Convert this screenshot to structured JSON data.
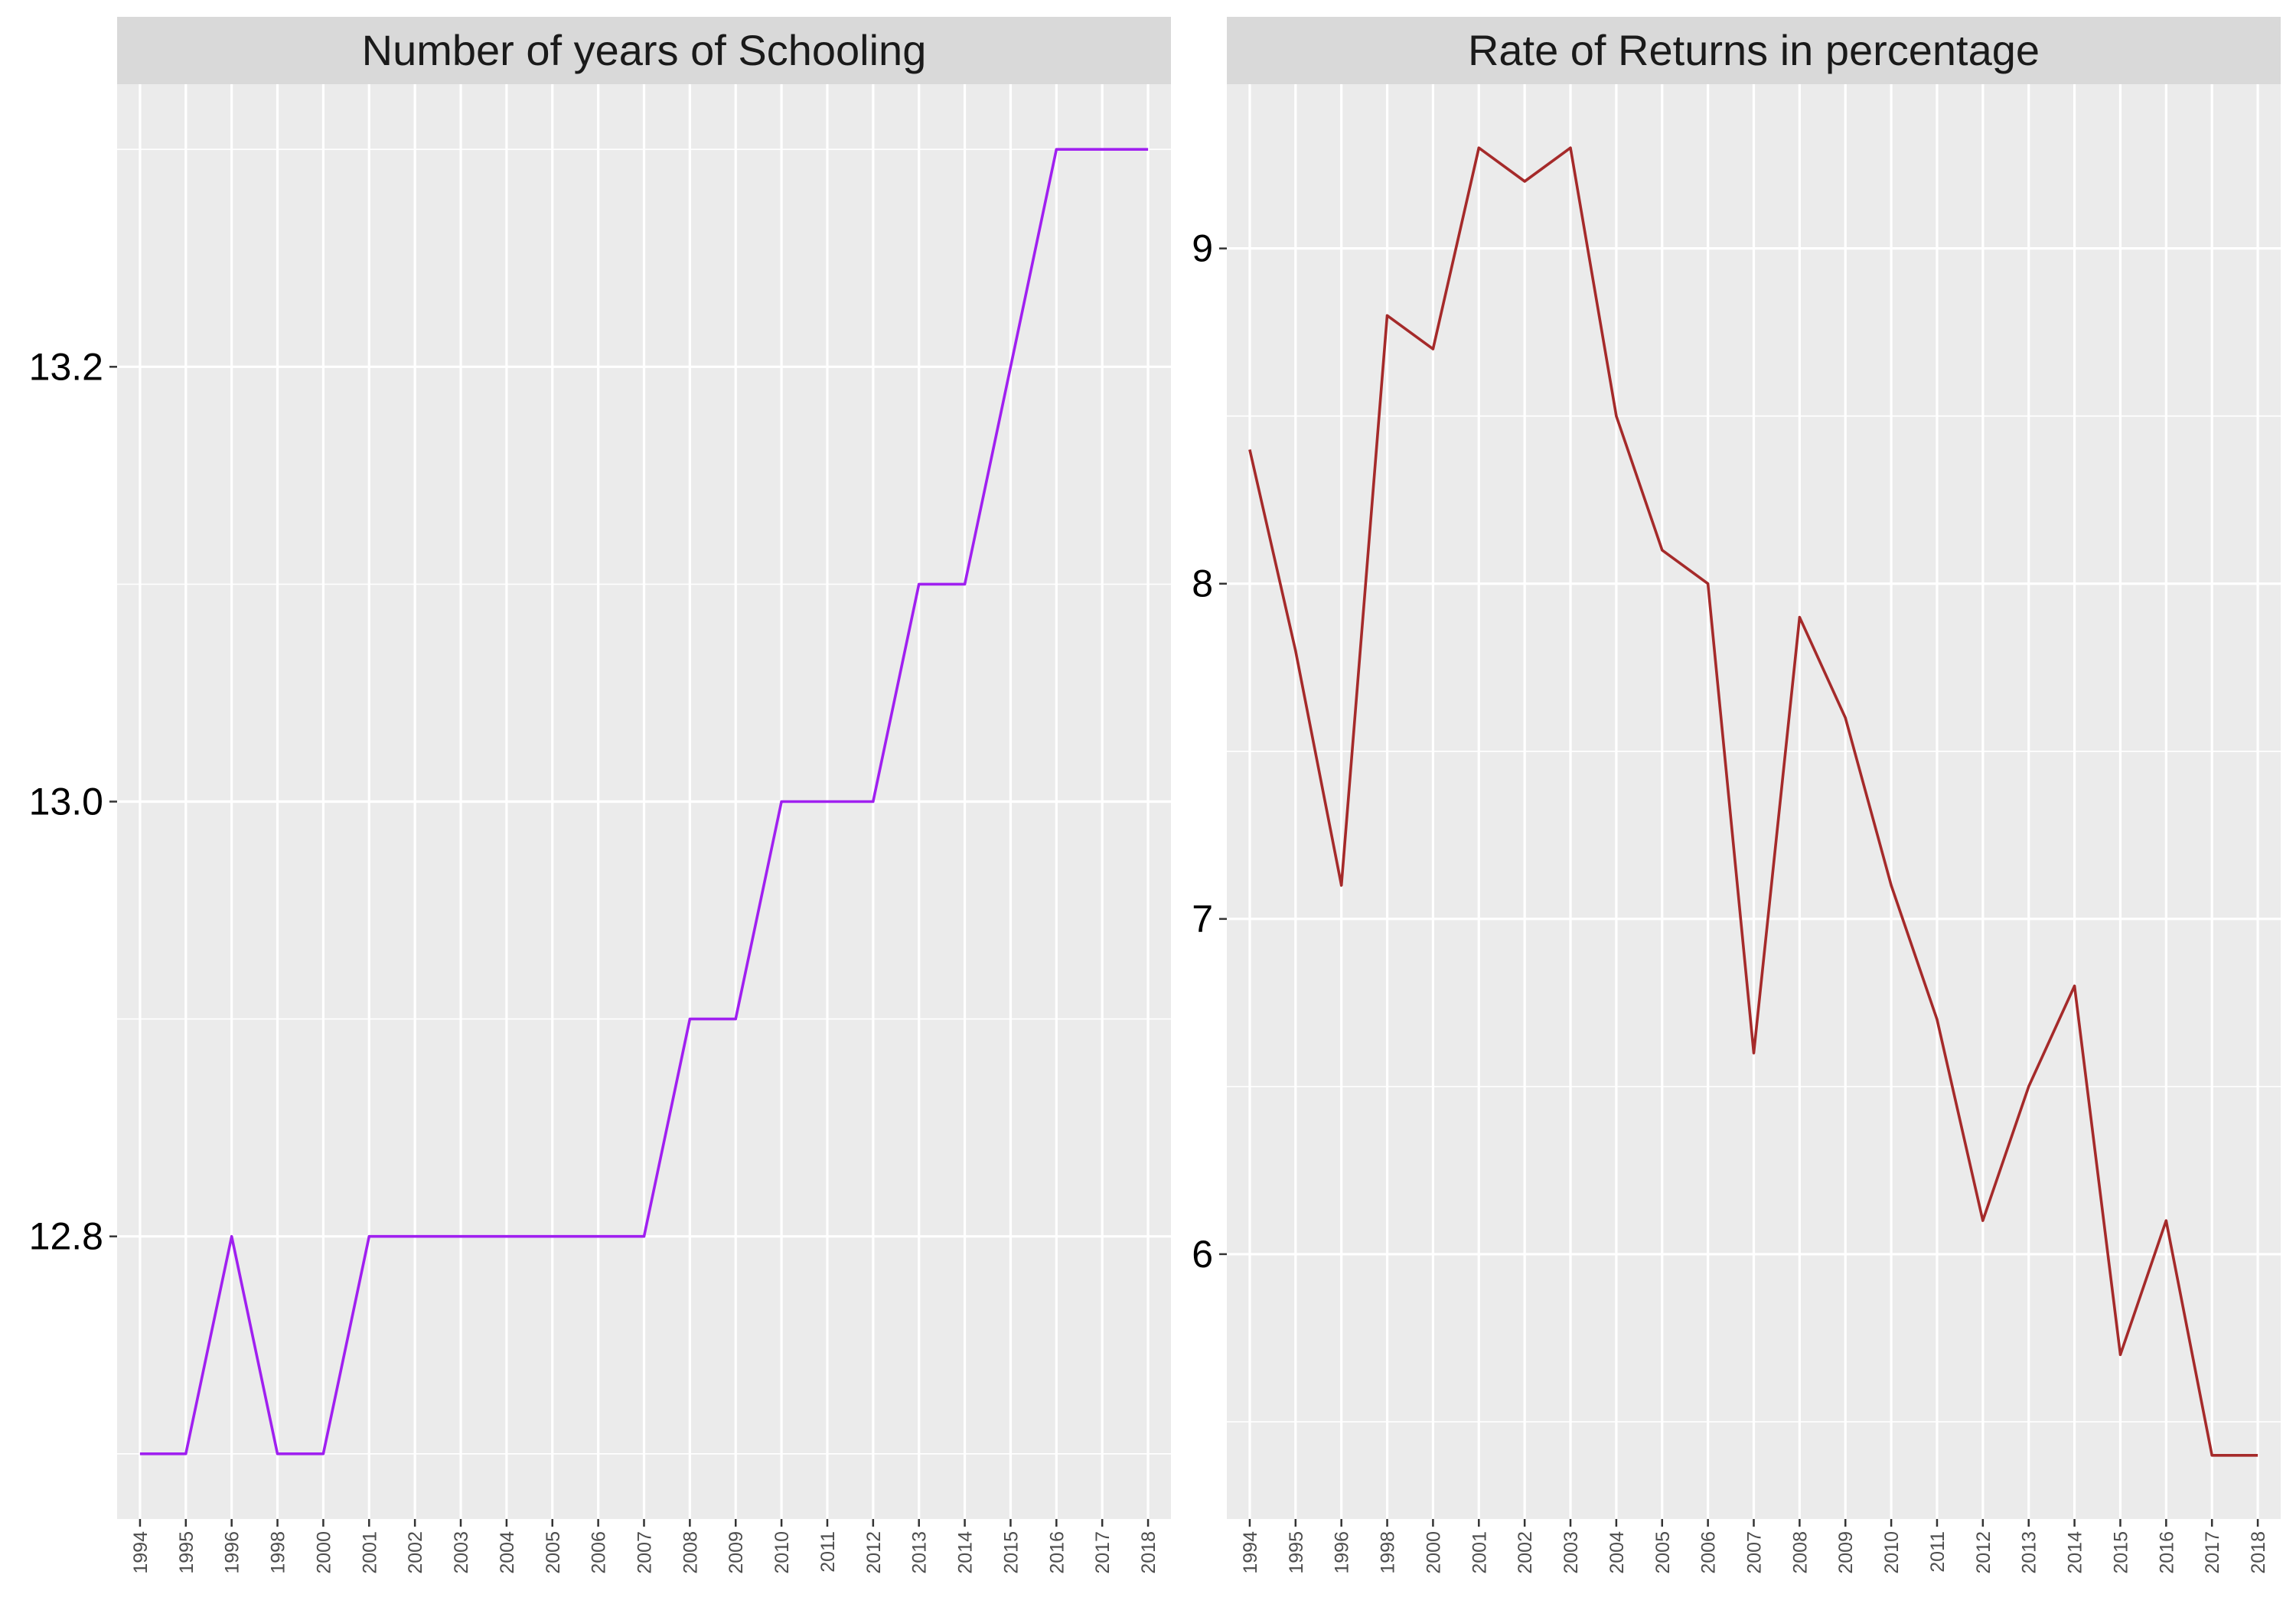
{
  "chart_data": [
    {
      "type": "line",
      "title": "Number of years of Schooling",
      "xlabel": "",
      "ylabel": "",
      "categories": [
        "1994",
        "1995",
        "1996",
        "1998",
        "2000",
        "2001",
        "2002",
        "2003",
        "2004",
        "2005",
        "2006",
        "2007",
        "2008",
        "2009",
        "2010",
        "2011",
        "2012",
        "2013",
        "2014",
        "2015",
        "2016",
        "2017",
        "2018"
      ],
      "series": [
        {
          "values": [
            12.7,
            12.7,
            12.8,
            12.7,
            12.7,
            12.8,
            12.8,
            12.8,
            12.8,
            12.8,
            12.8,
            12.8,
            12.9,
            12.9,
            13.0,
            13.0,
            13.0,
            13.1,
            13.1,
            13.2,
            13.3,
            13.3,
            13.3
          ],
          "color": "#A020F0"
        }
      ],
      "yticks": [
        "12.8",
        "13.0",
        "13.2"
      ],
      "ylim": [
        12.67,
        13.33
      ],
      "grid": true,
      "legend": "none"
    },
    {
      "type": "line",
      "title": "Rate of Returns in percentage",
      "xlabel": "",
      "ylabel": "",
      "categories": [
        "1994",
        "1995",
        "1996",
        "1998",
        "2000",
        "2001",
        "2002",
        "2003",
        "2004",
        "2005",
        "2006",
        "2007",
        "2008",
        "2009",
        "2010",
        "2011",
        "2012",
        "2013",
        "2014",
        "2015",
        "2016",
        "2017",
        "2018"
      ],
      "series": [
        {
          "values": [
            8.4,
            7.8,
            7.1,
            8.8,
            8.7,
            9.3,
            9.2,
            9.3,
            8.5,
            8.1,
            8.0,
            6.6,
            7.9,
            7.6,
            7.1,
            6.7,
            6.1,
            6.5,
            6.8,
            5.7,
            6.1,
            5.4,
            5.4
          ],
          "color": "#A52A2A"
        }
      ],
      "yticks": [
        "6",
        "7",
        "8",
        "9"
      ],
      "ylim": [
        5.21,
        9.49
      ],
      "grid": true,
      "legend": "none"
    }
  ]
}
